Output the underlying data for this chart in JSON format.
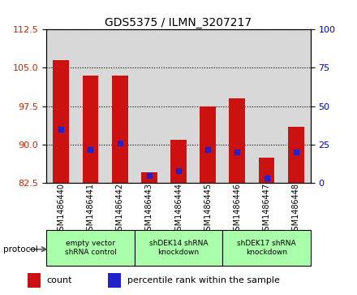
{
  "title": "GDS5375 / ILMN_3207217",
  "samples": [
    "GSM1486440",
    "GSM1486441",
    "GSM1486442",
    "GSM1486443",
    "GSM1486444",
    "GSM1486445",
    "GSM1486446",
    "GSM1486447",
    "GSM1486448"
  ],
  "counts": [
    106.5,
    103.5,
    103.5,
    84.5,
    91.0,
    97.5,
    99.0,
    87.5,
    93.5
  ],
  "percentiles": [
    35,
    22,
    26,
    5,
    8,
    22,
    20,
    3,
    20
  ],
  "ylim_left": [
    82.5,
    112.5
  ],
  "ylim_right": [
    0,
    100
  ],
  "yticks_left": [
    82.5,
    90,
    97.5,
    105,
    112.5
  ],
  "yticks_right": [
    0,
    25,
    50,
    75,
    100
  ],
  "bar_color": "#cc1111",
  "percentile_color": "#2222cc",
  "bar_bottom": 82.5,
  "groups": [
    {
      "label": "empty vector\nshRNA control",
      "start": 0,
      "end": 3
    },
    {
      "label": "shDEK14 shRNA\nknockdown",
      "start": 3,
      "end": 6
    },
    {
      "label": "shDEK17 shRNA\nknockdown",
      "start": 6,
      "end": 9
    }
  ],
  "group_color": "#aaffaa",
  "protocol_label": "protocol",
  "legend_count_label": "count",
  "legend_percentile_label": "percentile rank within the sample",
  "bar_width": 0.55,
  "title_fontsize": 10,
  "tick_fontsize": 8,
  "label_fontsize": 8
}
